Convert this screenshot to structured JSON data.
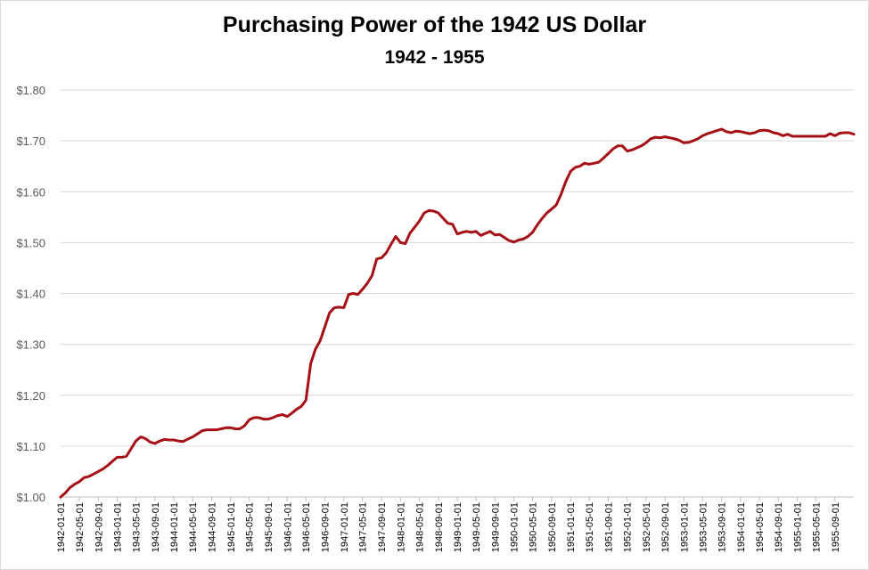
{
  "chart_data": {
    "type": "line",
    "title": "Purchasing Power of the 1942 US Dollar",
    "subtitle": "1942 - 1955",
    "xlabel": "",
    "ylabel": "",
    "ylim": [
      1.0,
      1.8
    ],
    "grid": true,
    "legend": "none",
    "y_ticks": [
      "$1.00",
      "$1.10",
      "$1.20",
      "$1.30",
      "$1.40",
      "$1.50",
      "$1.60",
      "$1.70",
      "$1.80"
    ],
    "x_ticks": [
      "1942-01-01",
      "1942-05-01",
      "1942-09-01",
      "1943-01-01",
      "1943-05-01",
      "1943-09-01",
      "1944-01-01",
      "1944-05-01",
      "1944-09-01",
      "1945-01-01",
      "1945-05-01",
      "1945-09-01",
      "1946-01-01",
      "1946-05-01",
      "1946-09-01",
      "1947-01-01",
      "1947-05-01",
      "1947-09-01",
      "1948-01-01",
      "1948-05-01",
      "1948-09-01",
      "1949-01-01",
      "1949-05-01",
      "1949-09-01",
      "1950-01-01",
      "1950-05-01",
      "1950-09-01",
      "1951-01-01",
      "1951-05-01",
      "1951-09-01",
      "1952-01-01",
      "1952-05-01",
      "1952-09-01",
      "1953-01-01",
      "1953-05-01",
      "1953-09-01",
      "1954-01-01",
      "1954-05-01",
      "1954-09-01",
      "1955-01-01",
      "1955-05-01",
      "1955-09-01"
    ],
    "series": [
      {
        "color": "#a50f15",
        "points": [
          [
            "1942-01-01",
            1.0
          ],
          [
            "1942-02-01",
            1.008
          ],
          [
            "1942-03-01",
            1.018
          ],
          [
            "1942-04-01",
            1.025
          ],
          [
            "1942-05-01",
            1.03
          ],
          [
            "1942-06-01",
            1.038
          ],
          [
            "1942-07-01",
            1.04
          ],
          [
            "1942-08-01",
            1.045
          ],
          [
            "1942-09-01",
            1.05
          ],
          [
            "1942-10-01",
            1.055
          ],
          [
            "1942-11-01",
            1.062
          ],
          [
            "1942-12-01",
            1.07
          ],
          [
            "1943-01-01",
            1.078
          ],
          [
            "1943-02-01",
            1.078
          ],
          [
            "1943-03-01",
            1.08
          ],
          [
            "1943-04-01",
            1.095
          ],
          [
            "1943-05-01",
            1.11
          ],
          [
            "1943-06-01",
            1.118
          ],
          [
            "1943-07-01",
            1.115
          ],
          [
            "1943-08-01",
            1.108
          ],
          [
            "1943-09-01",
            1.105
          ],
          [
            "1943-10-01",
            1.11
          ],
          [
            "1943-11-01",
            1.113
          ],
          [
            "1943-12-01",
            1.112
          ],
          [
            "1944-01-01",
            1.112
          ],
          [
            "1944-02-01",
            1.11
          ],
          [
            "1944-03-01",
            1.109
          ],
          [
            "1944-04-01",
            1.114
          ],
          [
            "1944-05-01",
            1.118
          ],
          [
            "1944-06-01",
            1.124
          ],
          [
            "1944-07-01",
            1.13
          ],
          [
            "1944-08-01",
            1.132
          ],
          [
            "1944-09-01",
            1.132
          ],
          [
            "1944-10-01",
            1.132
          ],
          [
            "1944-11-01",
            1.134
          ],
          [
            "1944-12-01",
            1.136
          ],
          [
            "1945-01-01",
            1.136
          ],
          [
            "1945-02-01",
            1.134
          ],
          [
            "1945-03-01",
            1.134
          ],
          [
            "1945-04-01",
            1.14
          ],
          [
            "1945-05-01",
            1.152
          ],
          [
            "1945-06-01",
            1.156
          ],
          [
            "1945-07-01",
            1.156
          ],
          [
            "1945-08-01",
            1.153
          ],
          [
            "1945-09-01",
            1.153
          ],
          [
            "1945-10-01",
            1.156
          ],
          [
            "1945-11-01",
            1.16
          ],
          [
            "1945-12-01",
            1.162
          ],
          [
            "1946-01-01",
            1.158
          ],
          [
            "1946-02-01",
            1.165
          ],
          [
            "1946-03-01",
            1.172
          ],
          [
            "1946-04-01",
            1.178
          ],
          [
            "1946-05-01",
            1.19
          ],
          [
            "1946-06-01",
            1.262
          ],
          [
            "1946-07-01",
            1.29
          ],
          [
            "1946-08-01",
            1.307
          ],
          [
            "1946-09-01",
            1.335
          ],
          [
            "1946-10-01",
            1.362
          ],
          [
            "1946-11-01",
            1.372
          ],
          [
            "1946-12-01",
            1.373
          ],
          [
            "1947-01-01",
            1.372
          ],
          [
            "1947-02-01",
            1.398
          ],
          [
            "1947-03-01",
            1.4
          ],
          [
            "1947-04-01",
            1.398
          ],
          [
            "1947-05-01",
            1.408
          ],
          [
            "1947-06-01",
            1.42
          ],
          [
            "1947-07-01",
            1.435
          ],
          [
            "1947-08-01",
            1.468
          ],
          [
            "1947-09-01",
            1.47
          ],
          [
            "1947-10-01",
            1.48
          ],
          [
            "1947-11-01",
            1.497
          ],
          [
            "1947-12-01",
            1.512
          ],
          [
            "1948-01-01",
            1.5
          ],
          [
            "1948-02-01",
            1.498
          ],
          [
            "1948-03-01",
            1.518
          ],
          [
            "1948-04-01",
            1.53
          ],
          [
            "1948-05-01",
            1.542
          ],
          [
            "1948-06-01",
            1.558
          ],
          [
            "1948-07-01",
            1.563
          ],
          [
            "1948-08-01",
            1.562
          ],
          [
            "1948-09-01",
            1.558
          ],
          [
            "1948-10-01",
            1.548
          ],
          [
            "1948-11-01",
            1.538
          ],
          [
            "1948-12-01",
            1.536
          ],
          [
            "1949-01-01",
            1.517
          ],
          [
            "1949-02-01",
            1.52
          ],
          [
            "1949-03-01",
            1.522
          ],
          [
            "1949-04-01",
            1.52
          ],
          [
            "1949-05-01",
            1.522
          ],
          [
            "1949-06-01",
            1.514
          ],
          [
            "1949-07-01",
            1.518
          ],
          [
            "1949-08-01",
            1.522
          ],
          [
            "1949-09-01",
            1.515
          ],
          [
            "1949-10-01",
            1.516
          ],
          [
            "1949-11-01",
            1.51
          ],
          [
            "1949-12-01",
            1.504
          ],
          [
            "1950-01-01",
            1.501
          ],
          [
            "1950-02-01",
            1.505
          ],
          [
            "1950-03-01",
            1.507
          ],
          [
            "1950-04-01",
            1.512
          ],
          [
            "1950-05-01",
            1.52
          ],
          [
            "1950-06-01",
            1.535
          ],
          [
            "1950-07-01",
            1.547
          ],
          [
            "1950-08-01",
            1.558
          ],
          [
            "1950-09-01",
            1.566
          ],
          [
            "1950-10-01",
            1.574
          ],
          [
            "1950-11-01",
            1.595
          ],
          [
            "1950-12-01",
            1.62
          ],
          [
            "1951-01-01",
            1.64
          ],
          [
            "1951-02-01",
            1.648
          ],
          [
            "1951-03-01",
            1.65
          ],
          [
            "1951-04-01",
            1.656
          ],
          [
            "1951-05-01",
            1.654
          ],
          [
            "1951-06-01",
            1.656
          ],
          [
            "1951-07-01",
            1.658
          ],
          [
            "1951-08-01",
            1.666
          ],
          [
            "1951-09-01",
            1.675
          ],
          [
            "1951-10-01",
            1.684
          ],
          [
            "1951-11-01",
            1.69
          ],
          [
            "1951-12-01",
            1.69
          ],
          [
            "1952-01-01",
            1.68
          ],
          [
            "1952-02-01",
            1.682
          ],
          [
            "1952-03-01",
            1.686
          ],
          [
            "1952-04-01",
            1.69
          ],
          [
            "1952-05-01",
            1.696
          ],
          [
            "1952-06-01",
            1.704
          ],
          [
            "1952-07-01",
            1.707
          ],
          [
            "1952-08-01",
            1.706
          ],
          [
            "1952-09-01",
            1.708
          ],
          [
            "1952-10-01",
            1.706
          ],
          [
            "1952-11-01",
            1.704
          ],
          [
            "1952-12-01",
            1.701
          ],
          [
            "1953-01-01",
            1.696
          ],
          [
            "1953-02-01",
            1.697
          ],
          [
            "1953-03-01",
            1.7
          ],
          [
            "1953-04-01",
            1.704
          ],
          [
            "1953-05-01",
            1.71
          ],
          [
            "1953-06-01",
            1.714
          ],
          [
            "1953-07-01",
            1.717
          ],
          [
            "1953-08-01",
            1.72
          ],
          [
            "1953-09-01",
            1.723
          ],
          [
            "1953-10-01",
            1.718
          ],
          [
            "1953-11-01",
            1.716
          ],
          [
            "1953-12-01",
            1.719
          ],
          [
            "1954-01-01",
            1.718
          ],
          [
            "1954-02-01",
            1.716
          ],
          [
            "1954-03-01",
            1.714
          ],
          [
            "1954-04-01",
            1.716
          ],
          [
            "1954-05-01",
            1.72
          ],
          [
            "1954-06-01",
            1.721
          ],
          [
            "1954-07-01",
            1.72
          ],
          [
            "1954-08-01",
            1.716
          ],
          [
            "1954-09-01",
            1.714
          ],
          [
            "1954-10-01",
            1.71
          ],
          [
            "1954-11-01",
            1.713
          ],
          [
            "1954-12-01",
            1.709
          ],
          [
            "1955-01-01",
            1.709
          ],
          [
            "1955-02-01",
            1.709
          ],
          [
            "1955-03-01",
            1.709
          ],
          [
            "1955-04-01",
            1.709
          ],
          [
            "1955-05-01",
            1.709
          ],
          [
            "1955-06-01",
            1.709
          ],
          [
            "1955-07-01",
            1.709
          ],
          [
            "1955-08-01",
            1.714
          ],
          [
            "1955-09-01",
            1.71
          ],
          [
            "1955-10-01",
            1.715
          ],
          [
            "1955-11-01",
            1.716
          ],
          [
            "1955-12-01",
            1.716
          ],
          [
            "1956-01-01",
            1.713
          ]
        ]
      }
    ]
  }
}
